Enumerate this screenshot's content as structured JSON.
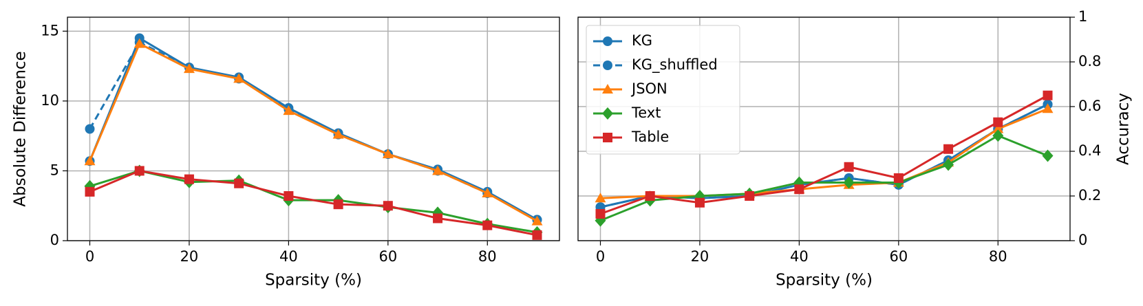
{
  "chart_data": [
    {
      "type": "line",
      "x_label": "Sparsity (%)",
      "y_label": "Absolute Difference",
      "x": [
        0,
        10,
        20,
        30,
        40,
        50,
        60,
        70,
        80,
        90
      ],
      "xlim": [
        -4.5,
        94.5
      ],
      "xticks": [
        0,
        20,
        40,
        60,
        80
      ],
      "ylim": [
        0,
        16
      ],
      "yticks": [
        0,
        5,
        10,
        15
      ],
      "grid": true,
      "series": [
        {
          "name": "KG",
          "color": "#1f77b4",
          "marker": "circle",
          "linestyle": "solid",
          "values": [
            5.7,
            14.5,
            12.4,
            11.7,
            9.5,
            7.7,
            6.2,
            5.1,
            3.5,
            1.5
          ]
        },
        {
          "name": "KG_shuffled",
          "color": "#1f77b4",
          "marker": "circle",
          "linestyle": "dashed",
          "values": [
            8.0,
            14.2,
            12.4,
            11.6,
            9.4,
            7.6,
            6.2,
            5.0,
            3.4,
            1.5
          ]
        },
        {
          "name": "JSON",
          "color": "#ff7f0e",
          "marker": "triangle",
          "linestyle": "solid",
          "values": [
            5.7,
            14.1,
            12.3,
            11.6,
            9.3,
            7.6,
            6.2,
            5.0,
            3.4,
            1.4
          ]
        },
        {
          "name": "Text",
          "color": "#2ca02c",
          "marker": "diamond",
          "linestyle": "solid",
          "values": [
            3.9,
            5.0,
            4.2,
            4.3,
            2.9,
            2.9,
            2.4,
            2.0,
            1.2,
            0.6
          ]
        },
        {
          "name": "Table",
          "color": "#d62728",
          "marker": "square",
          "linestyle": "solid",
          "values": [
            3.5,
            5.0,
            4.4,
            4.1,
            3.2,
            2.6,
            2.5,
            1.6,
            1.1,
            0.4
          ]
        }
      ]
    },
    {
      "type": "line",
      "x_label": "Sparsity (%)",
      "y2_label": "Accuracy",
      "x": [
        0,
        10,
        20,
        30,
        40,
        50,
        60,
        70,
        80,
        90
      ],
      "xlim": [
        -4.5,
        94.5
      ],
      "xticks": [
        0,
        20,
        40,
        60,
        80
      ],
      "y2lim": [
        0,
        1
      ],
      "y2ticks": [
        0.0,
        0.2,
        0.4,
        0.6,
        0.8,
        1.0
      ],
      "grid": true,
      "legend": "upper left",
      "series": [
        {
          "name": "KG",
          "color": "#1f77b4",
          "marker": "circle",
          "linestyle": "solid",
          "axis": "y2",
          "values": [
            0.15,
            0.2,
            0.19,
            0.2,
            0.25,
            0.28,
            0.25,
            0.36,
            0.5,
            0.61
          ]
        },
        {
          "name": "KG_shuffled",
          "color": "#1f77b4",
          "marker": "circle",
          "linestyle": "dashed",
          "axis": "y2",
          "values": [
            0.15,
            0.2,
            0.19,
            0.2,
            0.25,
            0.28,
            0.25,
            0.36,
            0.5,
            0.61
          ]
        },
        {
          "name": "JSON",
          "color": "#ff7f0e",
          "marker": "triangle",
          "linestyle": "solid",
          "axis": "y2",
          "values": [
            0.19,
            0.2,
            0.2,
            0.21,
            0.23,
            0.25,
            0.26,
            0.35,
            0.5,
            0.59
          ]
        },
        {
          "name": "Text",
          "color": "#2ca02c",
          "marker": "diamond",
          "linestyle": "solid",
          "axis": "y2",
          "values": [
            0.09,
            0.18,
            0.2,
            0.21,
            0.26,
            0.26,
            0.26,
            0.34,
            0.47,
            0.38
          ]
        },
        {
          "name": "Table",
          "color": "#d62728",
          "marker": "square",
          "linestyle": "solid",
          "axis": "y2",
          "values": [
            0.12,
            0.2,
            0.17,
            0.2,
            0.23,
            0.33,
            0.28,
            0.41,
            0.53,
            0.65
          ]
        }
      ]
    }
  ]
}
